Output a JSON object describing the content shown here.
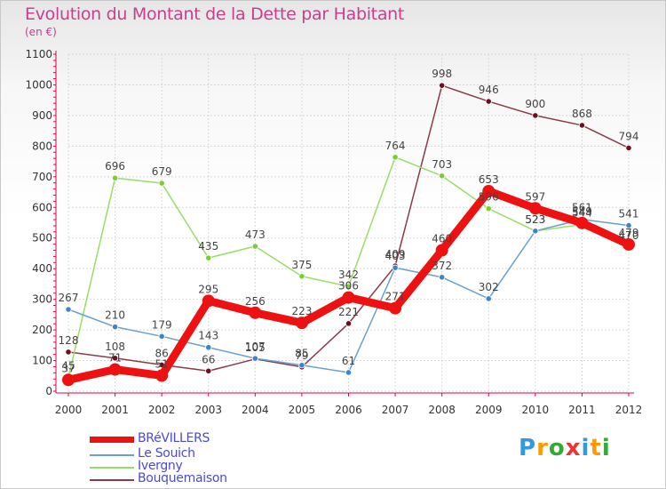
{
  "title": "Evolution du Montant de la Dette par Habitant",
  "subtitle": "(en €)",
  "colors": {
    "title": "#c8408a",
    "legend_text": "#4a4ad8",
    "axis": "#e0004a",
    "grid": "#d8d8d8"
  },
  "chart_data": {
    "type": "line",
    "x": [
      "2000",
      "2001",
      "2002",
      "2003",
      "2004",
      "2005",
      "2006",
      "2007",
      "2008",
      "2009",
      "2010",
      "2011",
      "2012"
    ],
    "ylim": [
      0,
      1100
    ],
    "yticks": [
      0,
      100,
      200,
      300,
      400,
      500,
      600,
      700,
      800,
      900,
      1000,
      1100
    ],
    "grid": true,
    "legend_position": "bottom-left",
    "series": [
      {
        "name": "BRéVILLERS",
        "color": "#ee1111",
        "marker": "#ee1111",
        "values": [
          37,
          71,
          51,
          295,
          256,
          223,
          306,
          271,
          460,
          653,
          597,
          549,
          479
        ]
      },
      {
        "name": "Le Souich",
        "color": "#6aa0d0",
        "marker": "#3d85c8",
        "values": [
          267,
          210,
          179,
          143,
          107,
          85,
          61,
          403,
          372,
          302,
          523,
          561,
          541
        ]
      },
      {
        "name": "Ivergny",
        "color": "#99dd66",
        "marker": "#7ccc33",
        "values": [
          45,
          696,
          679,
          435,
          473,
          375,
          342,
          764,
          703,
          596,
          523,
          544,
          470
        ]
      },
      {
        "name": "Bouquemaison",
        "color": "#8b3a48",
        "marker": "#6b1020",
        "values": [
          128,
          108,
          86,
          66,
          105,
          79,
          221,
          409,
          998,
          946,
          900,
          868,
          794
        ]
      }
    ],
    "data_labels": [
      [
        "37",
        "71",
        "51",
        "295",
        "256",
        "223",
        "306",
        "271",
        "460",
        "653",
        "597",
        "549",
        "479"
      ],
      [
        "267",
        "210",
        "179",
        "143",
        "107",
        "85",
        "61",
        "403",
        "372",
        "302",
        "523",
        "561",
        "541"
      ],
      [
        "45",
        "696",
        "679",
        "435",
        "473",
        "375",
        "342",
        "764",
        "703",
        "596",
        "523",
        "544",
        "470"
      ],
      [
        "128",
        "108",
        "86",
        "66",
        "105",
        "79",
        "221",
        "409",
        "998",
        "946",
        "900",
        "868",
        "794"
      ]
    ]
  },
  "logo": {
    "letters": [
      "P",
      "r",
      "o",
      "x",
      "i",
      "t",
      "i"
    ],
    "colors": [
      "#3399dd",
      "#ff9900",
      "#33aa33",
      "#ee3333",
      "#3399dd",
      "#ff9900",
      "#33aa33"
    ]
  }
}
